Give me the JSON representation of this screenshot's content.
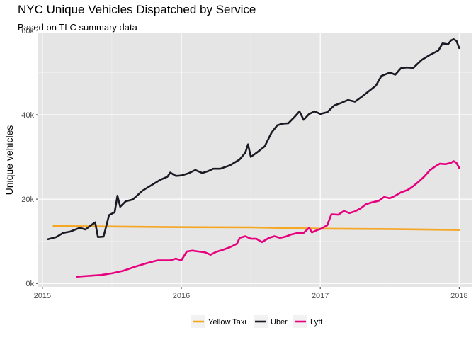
{
  "chart_data": {
    "type": "line",
    "title": "NYC Unique Vehicles Dispatched by Service",
    "subtitle": "Based on TLC summary data",
    "xlabel": "",
    "ylabel": "Unique vehicles",
    "xlim": [
      2014.97,
      2018.09
    ],
    "ylim": [
      -800,
      59300
    ],
    "x_ticks": [
      {
        "value": 2015,
        "label": "2015"
      },
      {
        "value": 2016,
        "label": "2016"
      },
      {
        "value": 2017,
        "label": "2017"
      },
      {
        "value": 2018,
        "label": "2018"
      }
    ],
    "y_ticks": [
      {
        "value": 0,
        "label": "0k"
      },
      {
        "value": 20000,
        "label": "20k"
      },
      {
        "value": 40000,
        "label": "40k"
      },
      {
        "value": 60000,
        "label": "60k"
      }
    ],
    "grid": true,
    "background": "#e5e5e5",
    "legend_position": "bottom",
    "series": [
      {
        "name": "Yellow Taxi",
        "color": "#f5a623",
        "points": [
          [
            2015.08,
            13600
          ],
          [
            2015.5,
            13500
          ],
          [
            2016.0,
            13350
          ],
          [
            2016.5,
            13300
          ],
          [
            2017.0,
            13000
          ],
          [
            2017.5,
            12900
          ],
          [
            2018.0,
            12700
          ]
        ]
      },
      {
        "name": "Uber",
        "color": "#1a1a24",
        "points": [
          [
            2015.04,
            10500
          ],
          [
            2015.1,
            11000
          ],
          [
            2015.15,
            12000
          ],
          [
            2015.2,
            12300
          ],
          [
            2015.27,
            13200
          ],
          [
            2015.31,
            12800
          ],
          [
            2015.35,
            13800
          ],
          [
            2015.38,
            14500
          ],
          [
            2015.4,
            11000
          ],
          [
            2015.44,
            11100
          ],
          [
            2015.48,
            16200
          ],
          [
            2015.52,
            16900
          ],
          [
            2015.54,
            20800
          ],
          [
            2015.56,
            18200
          ],
          [
            2015.6,
            19500
          ],
          [
            2015.65,
            19900
          ],
          [
            2015.72,
            22000
          ],
          [
            2015.77,
            23000
          ],
          [
            2015.85,
            24600
          ],
          [
            2015.9,
            25300
          ],
          [
            2015.92,
            26300
          ],
          [
            2015.96,
            25500
          ],
          [
            2016.0,
            25600
          ],
          [
            2016.05,
            26100
          ],
          [
            2016.1,
            26900
          ],
          [
            2016.15,
            26200
          ],
          [
            2016.19,
            26600
          ],
          [
            2016.23,
            27200
          ],
          [
            2016.28,
            27200
          ],
          [
            2016.35,
            28000
          ],
          [
            2016.42,
            29400
          ],
          [
            2016.46,
            31000
          ],
          [
            2016.48,
            33000
          ],
          [
            2016.5,
            30000
          ],
          [
            2016.55,
            31200
          ],
          [
            2016.6,
            32500
          ],
          [
            2016.65,
            35800
          ],
          [
            2016.69,
            37500
          ],
          [
            2016.73,
            37900
          ],
          [
            2016.77,
            38000
          ],
          [
            2016.81,
            39300
          ],
          [
            2016.85,
            40800
          ],
          [
            2016.88,
            38800
          ],
          [
            2016.92,
            40200
          ],
          [
            2016.96,
            40800
          ],
          [
            2017.0,
            40200
          ],
          [
            2017.05,
            40600
          ],
          [
            2017.1,
            42200
          ],
          [
            2017.15,
            42800
          ],
          [
            2017.2,
            43500
          ],
          [
            2017.25,
            43100
          ],
          [
            2017.3,
            44300
          ],
          [
            2017.35,
            45600
          ],
          [
            2017.4,
            46900
          ],
          [
            2017.44,
            49200
          ],
          [
            2017.5,
            50000
          ],
          [
            2017.54,
            49500
          ],
          [
            2017.58,
            51000
          ],
          [
            2017.62,
            51200
          ],
          [
            2017.67,
            51100
          ],
          [
            2017.73,
            53000
          ],
          [
            2017.79,
            54200
          ],
          [
            2017.85,
            55200
          ],
          [
            2017.88,
            56900
          ],
          [
            2017.92,
            56700
          ],
          [
            2017.94,
            57600
          ],
          [
            2017.96,
            57900
          ],
          [
            2017.98,
            57500
          ],
          [
            2018.0,
            55800
          ]
        ]
      },
      {
        "name": "Lyft",
        "color": "#e6007e",
        "points": [
          [
            2015.25,
            1600
          ],
          [
            2015.33,
            1800
          ],
          [
            2015.42,
            2000
          ],
          [
            2015.5,
            2400
          ],
          [
            2015.58,
            3000
          ],
          [
            2015.67,
            4000
          ],
          [
            2015.75,
            4800
          ],
          [
            2015.83,
            5500
          ],
          [
            2015.92,
            5500
          ],
          [
            2015.96,
            5900
          ],
          [
            2016.0,
            5500
          ],
          [
            2016.04,
            7600
          ],
          [
            2016.08,
            7800
          ],
          [
            2016.12,
            7600
          ],
          [
            2016.17,
            7400
          ],
          [
            2016.21,
            6800
          ],
          [
            2016.25,
            7500
          ],
          [
            2016.3,
            8000
          ],
          [
            2016.35,
            8600
          ],
          [
            2016.4,
            9400
          ],
          [
            2016.42,
            10800
          ],
          [
            2016.46,
            11200
          ],
          [
            2016.5,
            10600
          ],
          [
            2016.54,
            10600
          ],
          [
            2016.58,
            9800
          ],
          [
            2016.63,
            10800
          ],
          [
            2016.67,
            11200
          ],
          [
            2016.71,
            10800
          ],
          [
            2016.75,
            11100
          ],
          [
            2016.79,
            11600
          ],
          [
            2016.83,
            11900
          ],
          [
            2016.88,
            12000
          ],
          [
            2016.92,
            13200
          ],
          [
            2016.94,
            12100
          ],
          [
            2016.98,
            12700
          ],
          [
            2017.0,
            12900
          ],
          [
            2017.05,
            13800
          ],
          [
            2017.08,
            16400
          ],
          [
            2017.13,
            16300
          ],
          [
            2017.17,
            17200
          ],
          [
            2017.21,
            16700
          ],
          [
            2017.25,
            17100
          ],
          [
            2017.29,
            17800
          ],
          [
            2017.33,
            18800
          ],
          [
            2017.38,
            19300
          ],
          [
            2017.42,
            19600
          ],
          [
            2017.46,
            20500
          ],
          [
            2017.5,
            20200
          ],
          [
            2017.54,
            20800
          ],
          [
            2017.58,
            21600
          ],
          [
            2017.63,
            22200
          ],
          [
            2017.67,
            23100
          ],
          [
            2017.71,
            24200
          ],
          [
            2017.75,
            25400
          ],
          [
            2017.79,
            26900
          ],
          [
            2017.83,
            27800
          ],
          [
            2017.86,
            28400
          ],
          [
            2017.9,
            28300
          ],
          [
            2017.94,
            28600
          ],
          [
            2017.96,
            29000
          ],
          [
            2017.98,
            28600
          ],
          [
            2018.0,
            27400
          ]
        ]
      }
    ]
  }
}
